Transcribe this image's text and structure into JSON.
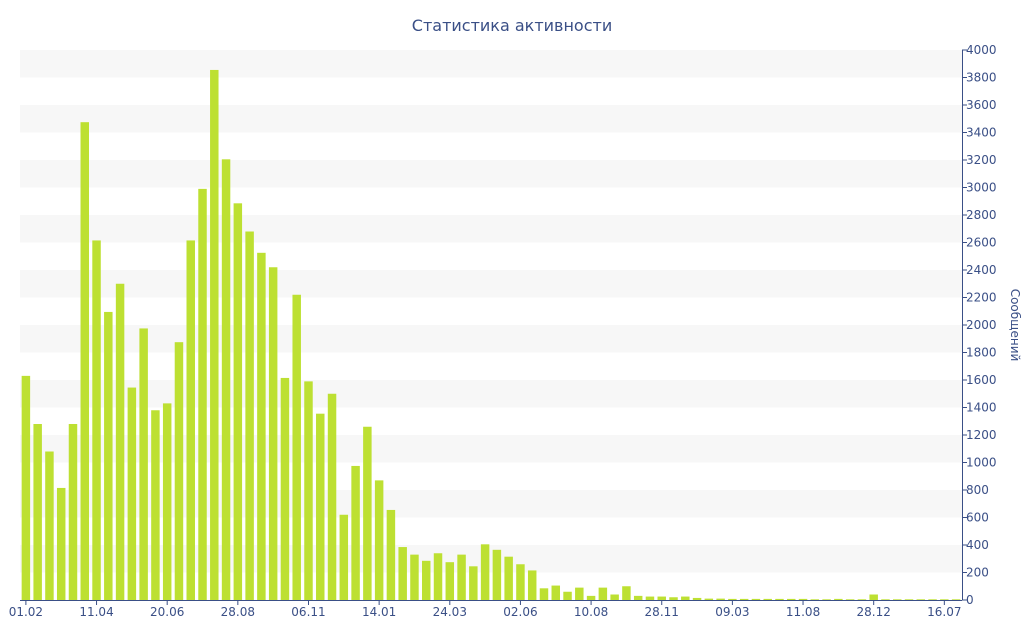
{
  "chart_data": {
    "type": "bar",
    "title": "Статистика активности",
    "ylabel": "Сообщений",
    "ylim": [
      0,
      4000
    ],
    "yticks": [
      0,
      200,
      400,
      600,
      800,
      1000,
      1200,
      1400,
      1600,
      1800,
      2000,
      2200,
      2400,
      2600,
      2800,
      3000,
      3200,
      3400,
      3600,
      3800,
      4000
    ],
    "y_axis_side": "right",
    "bar_color": "#bde032",
    "band_color": "#f7f7f7",
    "axis_color": "#3a4f86",
    "x_tick_labels": [
      {
        "index": 0,
        "label": "01.02"
      },
      {
        "index": 6,
        "label": "11.04"
      },
      {
        "index": 12,
        "label": "20.06"
      },
      {
        "index": 18,
        "label": "28.08"
      },
      {
        "index": 24,
        "label": "06.11"
      },
      {
        "index": 30,
        "label": "14.01"
      },
      {
        "index": 36,
        "label": "24.03"
      },
      {
        "index": 42,
        "label": "02.06"
      },
      {
        "index": 48,
        "label": "10.08"
      },
      {
        "index": 54,
        "label": "28.11"
      },
      {
        "index": 60,
        "label": "09.03"
      },
      {
        "index": 66,
        "label": "11.08"
      },
      {
        "index": 72,
        "label": "28.12"
      },
      {
        "index": 78,
        "label": "16.07"
      }
    ],
    "values": [
      1630,
      1280,
      1080,
      815,
      1280,
      3475,
      2615,
      2095,
      2300,
      1545,
      1975,
      1380,
      1430,
      1875,
      2615,
      2990,
      3855,
      3205,
      2885,
      2680,
      2525,
      2420,
      1615,
      2220,
      1590,
      1355,
      1500,
      620,
      975,
      1260,
      870,
      655,
      385,
      330,
      285,
      340,
      275,
      330,
      245,
      405,
      365,
      315,
      260,
      215,
      85,
      105,
      60,
      90,
      30,
      90,
      40,
      100,
      30,
      25,
      25,
      20,
      25,
      15,
      10,
      10,
      8,
      8,
      8,
      8,
      8,
      8,
      8,
      5,
      5,
      8,
      5,
      5,
      40,
      5,
      5,
      5,
      5,
      5,
      5,
      5
    ]
  }
}
